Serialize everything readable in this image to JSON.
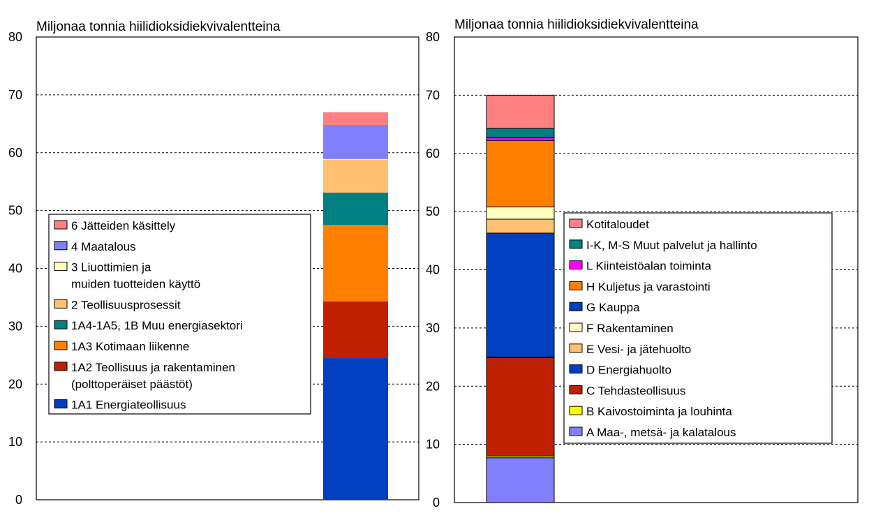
{
  "chart_data": [
    {
      "type": "bar",
      "stacked": true,
      "ylabel": "Miljonaa  tonnia  hiilidioksidiekvivalentteina",
      "ylim": [
        0,
        80
      ],
      "yticks": [
        "0",
        "10",
        "20",
        "30",
        "40",
        "50",
        "60",
        "70",
        "80"
      ],
      "grid": true,
      "legend_position": "left-middle",
      "series": [
        {
          "name": "1A1  Energiateollisuus",
          "label_lines": [
            "1A1  Energiateollisuus"
          ],
          "value": 24.5,
          "color": "#0040C0"
        },
        {
          "name": "1A2  Teollisuus  ja  rakentaminen (polttoperäiset  päästöt)",
          "label_lines": [
            "1A2  Teollisuus  ja  rakentaminen",
            "(polttoperäiset  päästöt)"
          ],
          "value": 9.8,
          "color": "#C02000"
        },
        {
          "name": "1A3  Kotimaan  liikenne",
          "label_lines": [
            "1A3  Kotimaan  liikenne"
          ],
          "value": 13.2,
          "color": "#FF8000"
        },
        {
          "name": "1A4-1A5,  1B  Muu  energiasektori",
          "label_lines": [
            "1A4-1A5,  1B  Muu  energiasektori"
          ],
          "value": 5.6,
          "color": "#008080"
        },
        {
          "name": "2  Teollisuusprosessit",
          "label_lines": [
            "2  Teollisuusprosessit"
          ],
          "value": 5.7,
          "color": "#FFC070"
        },
        {
          "name": "3  Liuottimien  ja muiden  tuotteiden  käyttö",
          "label_lines": [
            "3  Liuottimien  ja",
            "muiden  tuotteiden  käyttö"
          ],
          "value": 0.1,
          "color": "#FFFFC0"
        },
        {
          "name": "4  Maatalous",
          "label_lines": [
            "4  Maatalous"
          ],
          "value": 5.9,
          "color": "#8080FF"
        },
        {
          "name": "6  Jätteiden  käsittely",
          "label_lines": [
            "6  Jätteiden  käsittely"
          ],
          "value": 2.2,
          "color": "#FF8080"
        }
      ]
    },
    {
      "type": "bar",
      "stacked": true,
      "ylabel": "Miljonaa  tonnia  hiilidioksidiekvivalentteina",
      "ylim": [
        0,
        80
      ],
      "yticks": [
        "0",
        "10",
        "20",
        "30",
        "40",
        "50",
        "60",
        "70",
        "80"
      ],
      "grid": true,
      "legend_position": "right-middle",
      "series": [
        {
          "name": "A  Maa-,  metsä-  ja  kalatalous",
          "label_lines": [
            "A  Maa-,  metsä-  ja  kalatalous"
          ],
          "value": 7.7,
          "color": "#8080FF"
        },
        {
          "name": "B  Kaivostoiminta  ja  louhinta",
          "label_lines": [
            "B  Kaivostoiminta  ja  louhinta"
          ],
          "value": 0.3,
          "color": "#FFFF00"
        },
        {
          "name": "C  Tehdasteollisuus",
          "label_lines": [
            "C  Tehdasteollisuus"
          ],
          "value": 16.9,
          "color": "#C02000"
        },
        {
          "name": "D  Energiahuolto",
          "label_lines": [
            "D  Energiahuolto"
          ],
          "value": 0.05,
          "color": "#0040C0"
        },
        {
          "name": "E  Vesi-  ja  jätehuolto",
          "label_lines": [
            "E  Vesi-  ja  jätehuolto"
          ],
          "value": 0.05,
          "color": "#FFC070"
        },
        {
          "name": "G  Kauppa",
          "label_lines": [
            "G  Kauppa"
          ],
          "value": 21.3,
          "color": "#0040C0"
        },
        {
          "name": "E  Vesi-  ja  jätehuolto",
          "label_lines": [],
          "value": 2.4,
          "color": "#FFC070"
        },
        {
          "name": "F  Rakentaminen",
          "label_lines": [
            "F  Rakentaminen"
          ],
          "value": 2.1,
          "color": "#FFFFC0"
        },
        {
          "name": "H  Kuljetus  ja  varastointi",
          "label_lines": [
            "H  Kuljetus  ja  varastointi"
          ],
          "value": 11.4,
          "color": "#FF8000"
        },
        {
          "name": "L  Kiinteistöalan  toiminta",
          "label_lines": [
            "L  Kiinteistöalan  toiminta"
          ],
          "value": 0.5,
          "color": "#FF00FF"
        },
        {
          "name": "I-K,  M-S  Muut  palvelut  ja  hallinto",
          "label_lines": [
            "I-K,  M-S  Muut  palvelut  ja  hallinto"
          ],
          "value": 1.6,
          "color": "#008080"
        },
        {
          "name": "Kotitaloudet",
          "label_lines": [
            "Kotitaloudet"
          ],
          "value": 5.7,
          "color": "#FF8080"
        }
      ],
      "legend_order": [
        "Kotitaloudet",
        "I-K,  M-S  Muut  palvelut  ja  hallinto",
        "L  Kiinteistöalan  toiminta",
        "H  Kuljetus  ja  varastointi",
        "G  Kauppa",
        "F  Rakentaminen",
        "E  Vesi-  ja  jätehuolto",
        "D  Energiahuolto",
        "C  Tehdasteollisuus",
        "B  Kaivostoiminta  ja  louhinta",
        "A  Maa-,  metsä-  ja  kalatalous"
      ],
      "legend_colors": [
        "#FF8080",
        "#008080",
        "#FF00FF",
        "#FF8000",
        "#0040C0",
        "#FFFFC0",
        "#FFC070",
        "#0040C0",
        "#C02000",
        "#FFFF00",
        "#8080FF"
      ]
    }
  ]
}
